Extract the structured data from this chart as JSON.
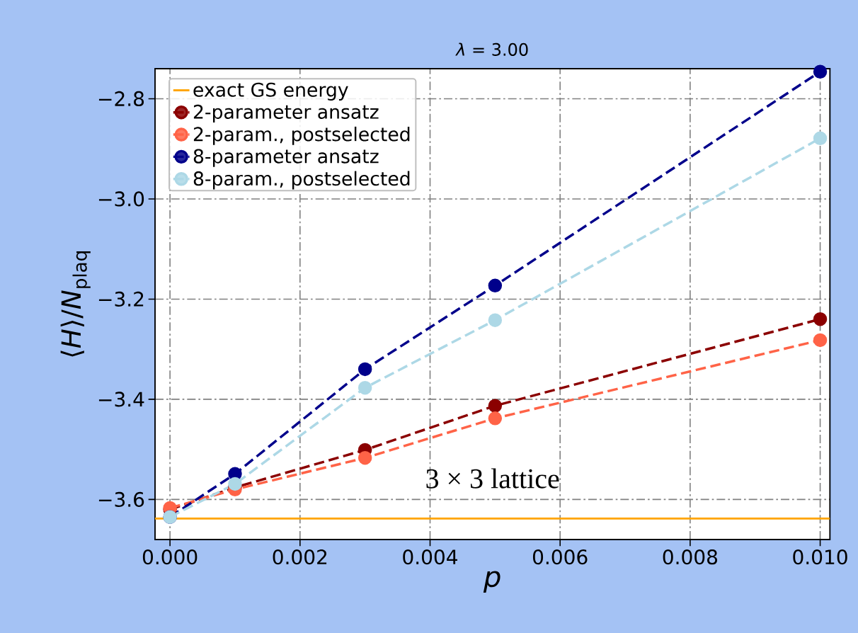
{
  "chart_data": {
    "type": "line",
    "title": "*λ* = 3.00",
    "xlabel": "p",
    "ylabel": "⟨*H*⟩/*N*$_{plaq}$",
    "x": [
      0,
      0.001,
      0.003,
      0.005,
      0.01
    ],
    "series": [
      {
        "name": "2-parameter ansatz",
        "color": "#8b0000",
        "values": [
          -3.62,
          -3.576,
          -3.501,
          -3.413,
          -3.24
        ]
      },
      {
        "name": "2-param., postselected",
        "color": "#ff6347",
        "values": [
          -3.617,
          -3.58,
          -3.517,
          -3.438,
          -3.282
        ]
      },
      {
        "name": "8-parameter ansatz",
        "color": "#00008b",
        "values": [
          -3.635,
          -3.549,
          -3.34,
          -3.173,
          -2.746
        ]
      },
      {
        "name": "8-param., postselected",
        "color": "#add8e6",
        "values": [
          -3.635,
          -3.569,
          -3.377,
          -3.242,
          -2.879
        ]
      }
    ],
    "ref_lines": [
      {
        "axis": "y",
        "value": -3.638,
        "label": "exact GS energy",
        "color": "#ffa500"
      }
    ],
    "annotations": [
      "3 × 3 lattice"
    ],
    "xlim": [
      -0.00023,
      0.01015
    ],
    "ylim": [
      -3.68,
      -2.74
    ],
    "xticks": [
      {
        "value": 0,
        "label": "0.000"
      },
      0.002,
      0.004,
      0.006,
      0.008,
      {
        "value": 0.01,
        "label": "0.010"
      }
    ],
    "yticks": [
      {
        "value": -3.6,
        "label": "−3.6"
      },
      {
        "value": -3.4,
        "label": "−3.4"
      },
      {
        "value": -3.2,
        "label": "−3.2"
      },
      {
        "value": -3.0,
        "label": "−3.0"
      },
      {
        "value": -2.8,
        "label": "−2.8"
      }
    ],
    "grid": true,
    "legend": "top left",
    "marker": "circle",
    "line_style": "dashed"
  }
}
